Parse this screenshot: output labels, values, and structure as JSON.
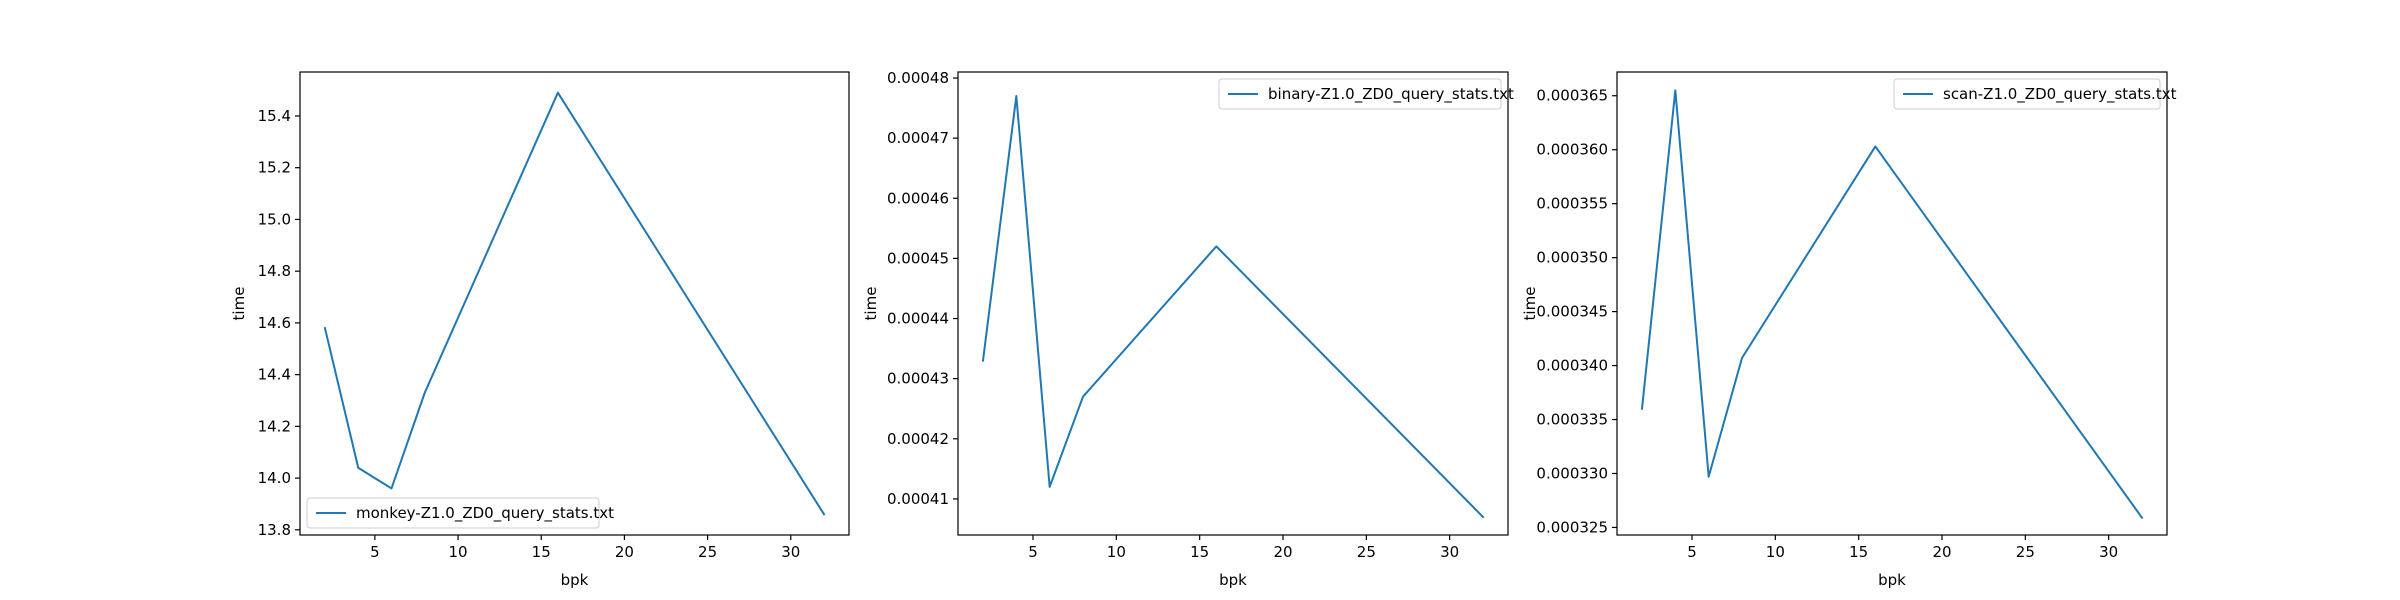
{
  "chart_data": [
    {
      "type": "line",
      "xlabel": "bpk",
      "ylabel": "time",
      "xlim": [
        0.5,
        33.5
      ],
      "ylim": [
        13.78,
        15.57
      ],
      "xticks": [
        5,
        10,
        15,
        20,
        25,
        30
      ],
      "yticks": [
        13.8,
        14.0,
        14.2,
        14.4,
        14.6,
        14.8,
        15.0,
        15.2,
        15.4
      ],
      "yticklabels": [
        "13.8",
        "14.0",
        "14.2",
        "14.4",
        "14.6",
        "14.8",
        "15.0",
        "15.2",
        "15.4"
      ],
      "legend_position": "lower-left",
      "grid": false,
      "series": [
        {
          "name": "monkey-Z1.0_ZD0_query_stats.txt",
          "color": "#1f77b4",
          "x": [
            2,
            4,
            6,
            8,
            16,
            32
          ],
          "y": [
            14.58,
            14.04,
            13.96,
            14.33,
            15.49,
            13.86
          ]
        }
      ]
    },
    {
      "type": "line",
      "xlabel": "bpk",
      "ylabel": "time",
      "xlim": [
        0.5,
        33.5
      ],
      "ylim": [
        0.000404,
        0.000481
      ],
      "xticks": [
        5,
        10,
        15,
        20,
        25,
        30
      ],
      "yticks": [
        0.00041,
        0.00042,
        0.00043,
        0.00044,
        0.00045,
        0.00046,
        0.00047,
        0.00048
      ],
      "yticklabels": [
        "0.00041",
        "0.00042",
        "0.00043",
        "0.00044",
        "0.00045",
        "0.00046",
        "0.00047",
        "0.00048"
      ],
      "legend_position": "upper-right",
      "grid": false,
      "series": [
        {
          "name": "binary-Z1.0_ZD0_query_stats.txt",
          "color": "#1f77b4",
          "x": [
            2,
            4,
            6,
            8,
            16,
            32
          ],
          "y": [
            0.000433,
            0.000477,
            0.000412,
            0.000427,
            0.000452,
            0.000407
          ]
        }
      ]
    },
    {
      "type": "line",
      "xlabel": "bpk",
      "ylabel": "time",
      "xlim": [
        0.5,
        33.5
      ],
      "ylim": [
        0.0003243,
        0.0003672
      ],
      "xticks": [
        5,
        10,
        15,
        20,
        25,
        30
      ],
      "yticks": [
        0.000325,
        0.00033,
        0.000335,
        0.00034,
        0.000345,
        0.00035,
        0.000355,
        0.00036,
        0.000365
      ],
      "yticklabels": [
        "0.000325",
        "0.000330",
        "0.000335",
        "0.000340",
        "0.000345",
        "0.000350",
        "0.000355",
        "0.000360",
        "0.000365"
      ],
      "legend_position": "upper-right",
      "grid": false,
      "series": [
        {
          "name": "scan-Z1.0_ZD0_query_stats.txt",
          "color": "#1f77b4",
          "x": [
            2,
            4,
            6,
            8,
            16,
            32
          ],
          "y": [
            0.000336,
            0.0003655,
            0.0003297,
            0.0003407,
            0.0003603,
            0.0003259
          ]
        }
      ]
    }
  ]
}
